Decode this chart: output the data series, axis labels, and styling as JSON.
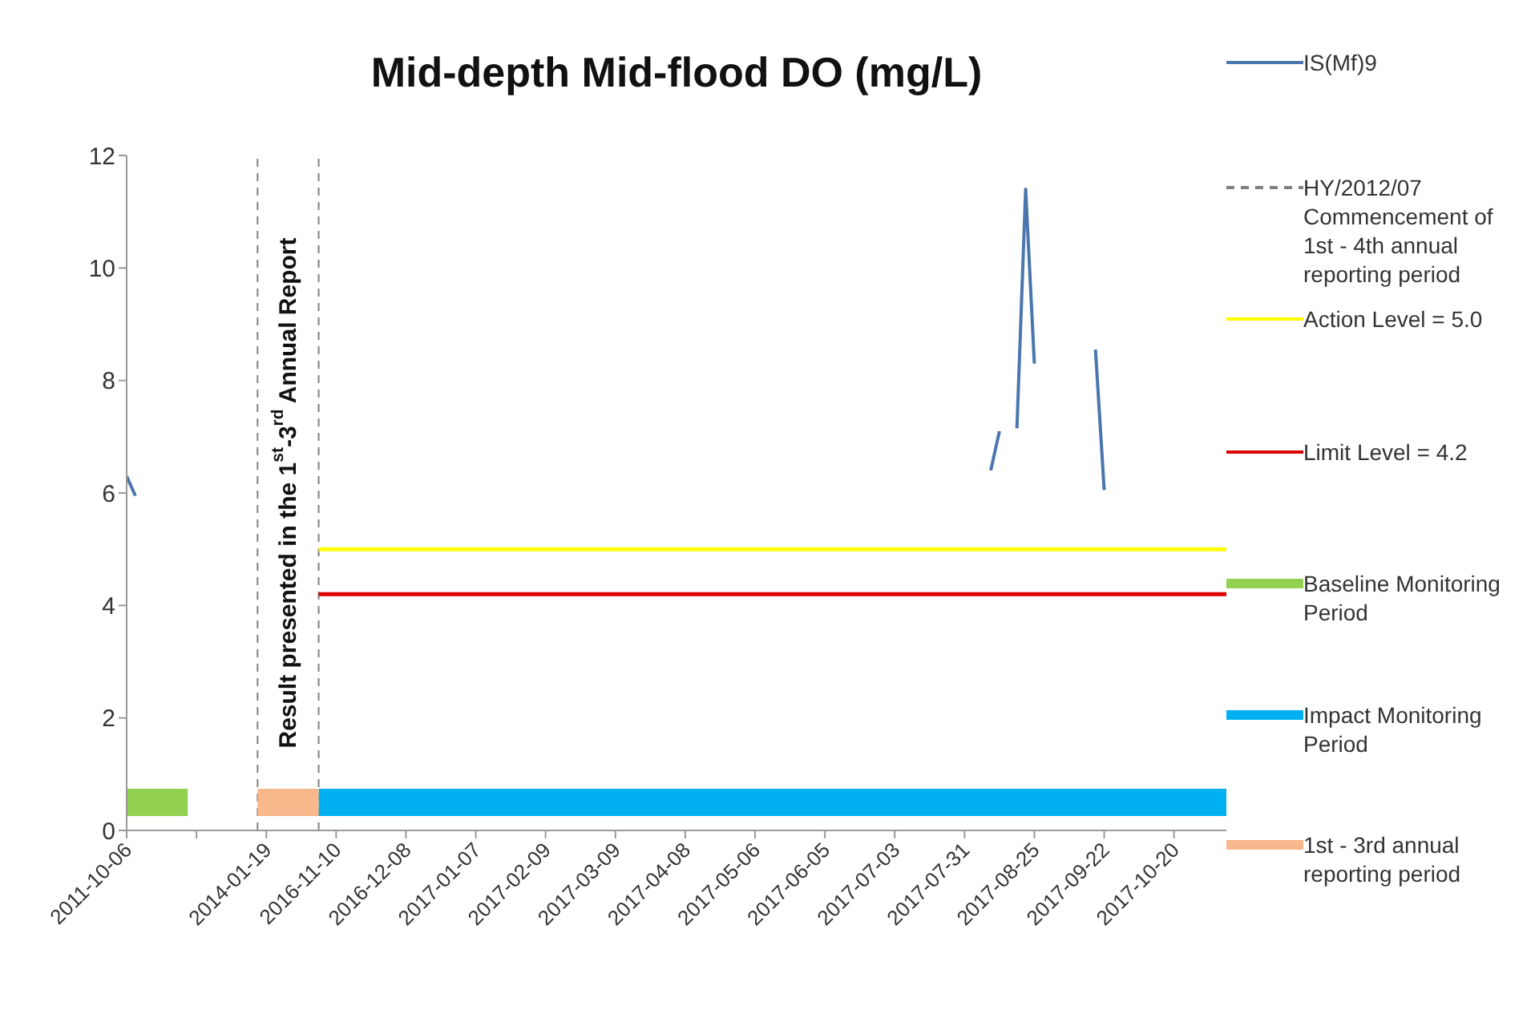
{
  "chart_data": {
    "type": "line",
    "title": "Mid-depth Mid-flood DO (mg/L)",
    "categories": [
      "2011-10-06",
      null,
      null,
      null,
      null,
      null,
      null,
      null,
      null,
      null,
      null,
      null,
      null,
      null,
      null,
      null,
      "2014-01-19",
      null,
      null,
      null,
      null,
      null,
      null,
      null,
      "2016-11-10",
      null,
      null,
      null,
      null,
      null,
      null,
      null,
      "2016-12-08",
      null,
      null,
      null,
      null,
      null,
      null,
      null,
      "2017-01-07",
      null,
      null,
      null,
      null,
      null,
      null,
      null,
      "2017-02-09",
      null,
      null,
      null,
      null,
      null,
      null,
      null,
      "2017-03-09",
      null,
      null,
      null,
      null,
      null,
      null,
      null,
      "2017-04-08",
      null,
      null,
      null,
      null,
      null,
      null,
      null,
      "2017-05-06",
      null,
      null,
      null,
      null,
      null,
      null,
      null,
      "2017-06-05",
      null,
      null,
      null,
      null,
      null,
      null,
      null,
      "2017-07-03",
      null,
      null,
      null,
      null,
      null,
      null,
      null,
      "2017-07-31",
      null,
      null,
      null,
      null,
      null,
      null,
      null,
      "2017-08-25",
      null,
      null,
      null,
      null,
      null,
      null,
      null,
      "2017-09-22",
      null,
      null,
      null,
      null,
      null,
      null,
      null,
      "2017-10-20",
      null,
      null,
      null,
      null,
      null,
      null
    ],
    "ylim": [
      0,
      12
    ],
    "yticks": [
      0,
      2,
      4,
      6,
      8,
      10,
      12
    ],
    "grid": false,
    "legend": "right",
    "series": [
      {
        "name": "IS(Mf)9",
        "color": "#4a76ad",
        "values": [
          6.3,
          5.95,
          null,
          null,
          null,
          null,
          null,
          null,
          null,
          null,
          null,
          null,
          null,
          null,
          null,
          null,
          null,
          null,
          null,
          null,
          null,
          null,
          null,
          null,
          null,
          null,
          null,
          null,
          null,
          null,
          null,
          null,
          null,
          null,
          null,
          null,
          null,
          null,
          null,
          null,
          null,
          null,
          null,
          null,
          null,
          null,
          null,
          null,
          null,
          null,
          null,
          null,
          null,
          null,
          null,
          null,
          null,
          null,
          null,
          null,
          null,
          null,
          null,
          null,
          null,
          null,
          null,
          null,
          null,
          null,
          null,
          null,
          null,
          null,
          null,
          null,
          null,
          null,
          null,
          null,
          null,
          null,
          null,
          null,
          null,
          null,
          null,
          null,
          null,
          null,
          null,
          null,
          null,
          null,
          null,
          null,
          null,
          null,
          null,
          6.4,
          7.1,
          null,
          7.15,
          11.4,
          8.3,
          null,
          null,
          null,
          null,
          null,
          null,
          8.55,
          6.05,
          null,
          null,
          null,
          null,
          null,
          null,
          null,
          null,
          null,
          null,
          null,
          null,
          null,
          null
        ]
      },
      {
        "name": "Action Level = 5.0",
        "color": "#ffff00",
        "values": [
          null,
          null,
          null,
          null,
          null,
          null,
          null,
          null,
          null,
          null,
          null,
          null,
          null,
          null,
          null,
          null,
          null,
          null,
          null,
          null,
          null,
          null,
          5,
          5,
          5,
          5,
          5,
          5,
          5,
          5,
          5,
          5,
          5,
          5,
          5,
          5,
          5,
          5,
          5,
          5,
          5,
          5,
          5,
          5,
          5,
          5,
          5,
          5,
          5,
          5,
          5,
          5,
          5,
          5,
          5,
          5,
          5,
          5,
          5,
          5,
          5,
          5,
          5,
          5,
          5,
          5,
          5,
          5,
          5,
          5,
          5,
          5,
          5,
          5,
          5,
          5,
          5,
          5,
          5,
          5,
          5,
          5,
          5,
          5,
          5,
          5,
          5,
          5,
          5,
          5,
          5,
          5,
          5,
          5,
          5,
          5,
          5,
          5,
          5,
          5,
          5,
          5,
          5,
          5,
          5,
          5,
          5,
          5,
          5,
          5,
          5,
          5,
          5,
          5,
          5,
          5,
          5,
          5,
          5,
          5,
          5,
          5,
          5,
          5,
          5,
          5,
          5
        ]
      },
      {
        "name": "Limit Level = 4.2",
        "color": "#dd0000",
        "values": [
          null,
          null,
          null,
          null,
          null,
          null,
          null,
          null,
          null,
          null,
          null,
          null,
          null,
          null,
          null,
          null,
          null,
          null,
          null,
          null,
          null,
          null,
          4.2,
          4.2,
          4.2,
          4.2,
          4.2,
          4.2,
          4.2,
          4.2,
          4.2,
          4.2,
          4.2,
          4.2,
          4.2,
          4.2,
          4.2,
          4.2,
          4.2,
          4.2,
          4.2,
          4.2,
          4.2,
          4.2,
          4.2,
          4.2,
          4.2,
          4.2,
          4.2,
          4.2,
          4.2,
          4.2,
          4.2,
          4.2,
          4.2,
          4.2,
          4.2,
          4.2,
          4.2,
          4.2,
          4.2,
          4.2,
          4.2,
          4.2,
          4.2,
          4.2,
          4.2,
          4.2,
          4.2,
          4.2,
          4.2,
          4.2,
          4.2,
          4.2,
          4.2,
          4.2,
          4.2,
          4.2,
          4.2,
          4.2,
          4.2,
          4.2,
          4.2,
          4.2,
          4.2,
          4.2,
          4.2,
          4.2,
          4.2,
          4.2,
          4.2,
          4.2,
          4.2,
          4.2,
          4.2,
          4.2,
          4.2,
          4.2,
          4.2,
          4.2,
          4.2,
          4.2,
          4.2,
          4.2,
          4.2,
          4.2,
          4.2,
          4.2,
          4.2,
          4.2,
          4.2,
          4.2,
          4.2,
          4.2,
          4.2,
          4.2,
          4.2,
          4.2,
          4.2,
          4.2,
          4.2,
          4.2,
          4.2,
          4.2,
          4.2,
          4.2,
          4.2
        ]
      },
      {
        "name": "Baseline Monitoring Period",
        "color": "#92d050",
        "values": [
          0.5,
          0.5,
          0.5,
          0.5,
          0.5,
          0.5,
          0.5,
          0.5,
          null,
          null,
          null,
          null,
          null,
          null,
          null,
          null,
          null,
          null,
          null,
          null,
          null,
          null,
          null,
          null,
          null,
          null,
          null,
          null,
          null,
          null,
          null,
          null,
          null,
          null,
          null,
          null,
          null,
          null,
          null,
          null,
          null,
          null,
          null,
          null,
          null,
          null,
          null,
          null,
          null,
          null,
          null,
          null,
          null,
          null,
          null,
          null,
          null,
          null,
          null,
          null,
          null,
          null,
          null,
          null,
          null,
          null,
          null,
          null,
          null,
          null,
          null,
          null,
          null,
          null,
          null,
          null,
          null,
          null,
          null,
          null,
          null,
          null,
          null,
          null,
          null,
          null,
          null,
          null,
          null,
          null,
          null,
          null,
          null,
          null,
          null,
          null,
          null,
          null,
          null,
          null,
          null,
          null,
          null,
          null,
          null,
          null,
          null,
          null,
          null,
          null,
          null,
          null,
          null,
          null,
          null,
          null,
          null,
          null,
          null,
          null,
          null,
          null,
          null,
          null,
          null,
          null,
          null
        ]
      },
      {
        "name": "Impact Monitoring Period",
        "color": "#00b0f0",
        "values": [
          null,
          null,
          null,
          null,
          null,
          null,
          null,
          null,
          null,
          null,
          null,
          null,
          null,
          null,
          null,
          null,
          null,
          null,
          null,
          null,
          null,
          null,
          0.5,
          0.5,
          0.5,
          0.5,
          0.5,
          0.5,
          0.5,
          0.5,
          0.5,
          0.5,
          0.5,
          0.5,
          0.5,
          0.5,
          0.5,
          0.5,
          0.5,
          0.5,
          0.5,
          0.5,
          0.5,
          0.5,
          0.5,
          0.5,
          0.5,
          0.5,
          0.5,
          0.5,
          0.5,
          0.5,
          0.5,
          0.5,
          0.5,
          0.5,
          0.5,
          0.5,
          0.5,
          0.5,
          0.5,
          0.5,
          0.5,
          0.5,
          0.5,
          0.5,
          0.5,
          0.5,
          0.5,
          0.5,
          0.5,
          0.5,
          0.5,
          0.5,
          0.5,
          0.5,
          0.5,
          0.5,
          0.5,
          0.5,
          0.5,
          0.5,
          0.5,
          0.5,
          0.5,
          0.5,
          0.5,
          0.5,
          0.5,
          0.5,
          0.5,
          0.5,
          0.5,
          0.5,
          0.5,
          0.5,
          0.5,
          0.5,
          0.5,
          0.5,
          0.5,
          0.5,
          0.5,
          0.5,
          0.5,
          0.5,
          0.5,
          0.5,
          0.5,
          0.5,
          0.5,
          0.5,
          0.5,
          0.5,
          0.5,
          0.5,
          0.5,
          0.5,
          0.5,
          0.5,
          0.5,
          0.5,
          0.5,
          0.5,
          0.5,
          0.5,
          0.5
        ]
      },
      {
        "name": "1st - 3rd annual reporting period",
        "color": "#f8b88b",
        "values": [
          null,
          null,
          null,
          null,
          null,
          null,
          null,
          null,
          null,
          null,
          null,
          null,
          null,
          null,
          null,
          0.5,
          0.5,
          0.5,
          0.5,
          0.5,
          0.5,
          0.5,
          0.5,
          null,
          null,
          null,
          null,
          null,
          null,
          null,
          null,
          null,
          null,
          null,
          null,
          null,
          null,
          null,
          null,
          null,
          null,
          null,
          null,
          null,
          null,
          null,
          null,
          null,
          null,
          null,
          null,
          null,
          null,
          null,
          null,
          null,
          null,
          null,
          null,
          null,
          null,
          null,
          null,
          null,
          null,
          null,
          null,
          null,
          null,
          null,
          null,
          null,
          null,
          null,
          null,
          null,
          null,
          null,
          null,
          null,
          null,
          null,
          null,
          null,
          null,
          null,
          null,
          null,
          null,
          null,
          null,
          null,
          null,
          null,
          null,
          null,
          null,
          null,
          null,
          null,
          null,
          null,
          null,
          null,
          null,
          null,
          null,
          null,
          null,
          null,
          null,
          null,
          null,
          null,
          null,
          null,
          null,
          null,
          null,
          null,
          null,
          null,
          null,
          null,
          null,
          null,
          null
        ]
      }
    ],
    "ref_lines": [
      {
        "axis": "x",
        "label": "HY/2012/07 Commencement of 1st - 4th annual reporting period",
        "color": "#808080",
        "line_style": "dashed"
      }
    ],
    "annotations": [
      "Result presented in the 1$^{st}$-3$^{rd}$  Annual Report"
    ]
  }
}
